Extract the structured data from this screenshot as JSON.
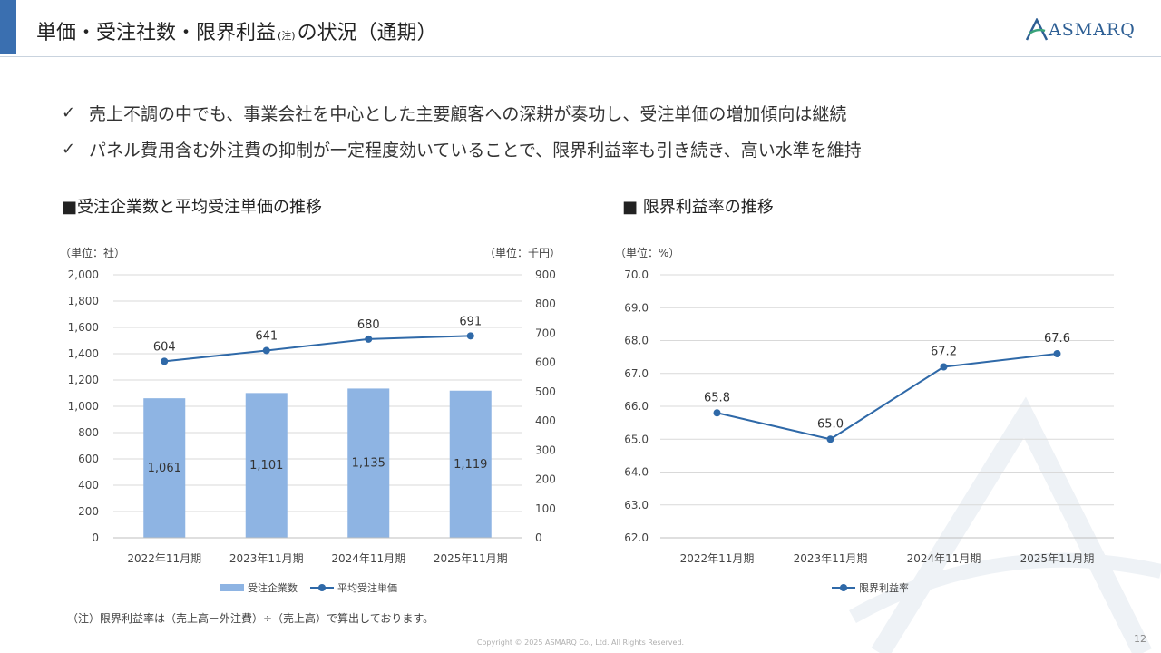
{
  "header": {
    "title_part1": "単価・受注社数・限界利益",
    "title_note": "(注)",
    "title_part2": "の状況（通期）",
    "logo_text": "ASMARQ"
  },
  "bullets": [
    "売上不調の中でも、事業会社を中心とした主要顧客への深耕が奏功し、受注単価の増加傾向は継続",
    "パネル費用含む外注費の抑制が一定程度効いていることで、限界利益率も引き続き、高い水準を維持"
  ],
  "check_mark": "✓",
  "chart_data": [
    {
      "type": "bar",
      "title": "■受注企業数と平均受注単価の推移",
      "unit_left": "（単位：社）",
      "unit_right": "（単位：千円）",
      "categories": [
        "2022年11月期",
        "2023年11月期",
        "2024年11月期",
        "2025年11月期"
      ],
      "left_ticks": [
        "0",
        "200",
        "400",
        "600",
        "800",
        "1,000",
        "1,200",
        "1,400",
        "1,600",
        "1,800",
        "2,000"
      ],
      "right_ticks": [
        "0",
        "100",
        "200",
        "300",
        "400",
        "500",
        "600",
        "700",
        "800",
        "900"
      ],
      "ylim": [
        0,
        2000
      ],
      "y2lim": [
        0,
        900
      ],
      "grid": true,
      "legend": "bottom",
      "series": [
        {
          "name": "受注企業数",
          "type": "bar",
          "axis": "left",
          "values": [
            1061,
            1101,
            1135,
            1119
          ],
          "labels": [
            "1,061",
            "1,101",
            "1,135",
            "1,119"
          ],
          "color": "#8eb4e3"
        },
        {
          "name": "平均受注単価",
          "type": "line",
          "axis": "right",
          "values": [
            604,
            641,
            680,
            691
          ],
          "labels": [
            "604",
            "641",
            "680",
            "691"
          ],
          "color": "#2f69a8"
        }
      ]
    },
    {
      "type": "line",
      "title": "■ 限界利益率の推移",
      "unit_left": "（単位：%）",
      "categories": [
        "2022年11月期",
        "2023年11月期",
        "2024年11月期",
        "2025年11月期"
      ],
      "left_ticks": [
        "62.0",
        "63.0",
        "64.0",
        "65.0",
        "66.0",
        "67.0",
        "68.0",
        "69.0",
        "70.0"
      ],
      "ylim": [
        62.0,
        70.0
      ],
      "grid": true,
      "legend": "bottom",
      "series": [
        {
          "name": "限界利益率",
          "type": "line",
          "values": [
            65.8,
            65.0,
            67.2,
            67.6
          ],
          "labels": [
            "65.8",
            "65.0",
            "67.2",
            "67.6"
          ],
          "color": "#2f69a8"
        }
      ]
    }
  ],
  "footnote": "（注）限界利益率は（売上高－外注費）÷（売上高）で算出しております。",
  "copyright": "Copyright © 2025 ASMARQ Co., Ltd. All Rights Reserved.",
  "page_number": "12",
  "colors": {
    "accent": "#3a6fb0",
    "bar": "#8eb4e3",
    "line": "#2f69a8",
    "grid": "#d9d9d9"
  }
}
